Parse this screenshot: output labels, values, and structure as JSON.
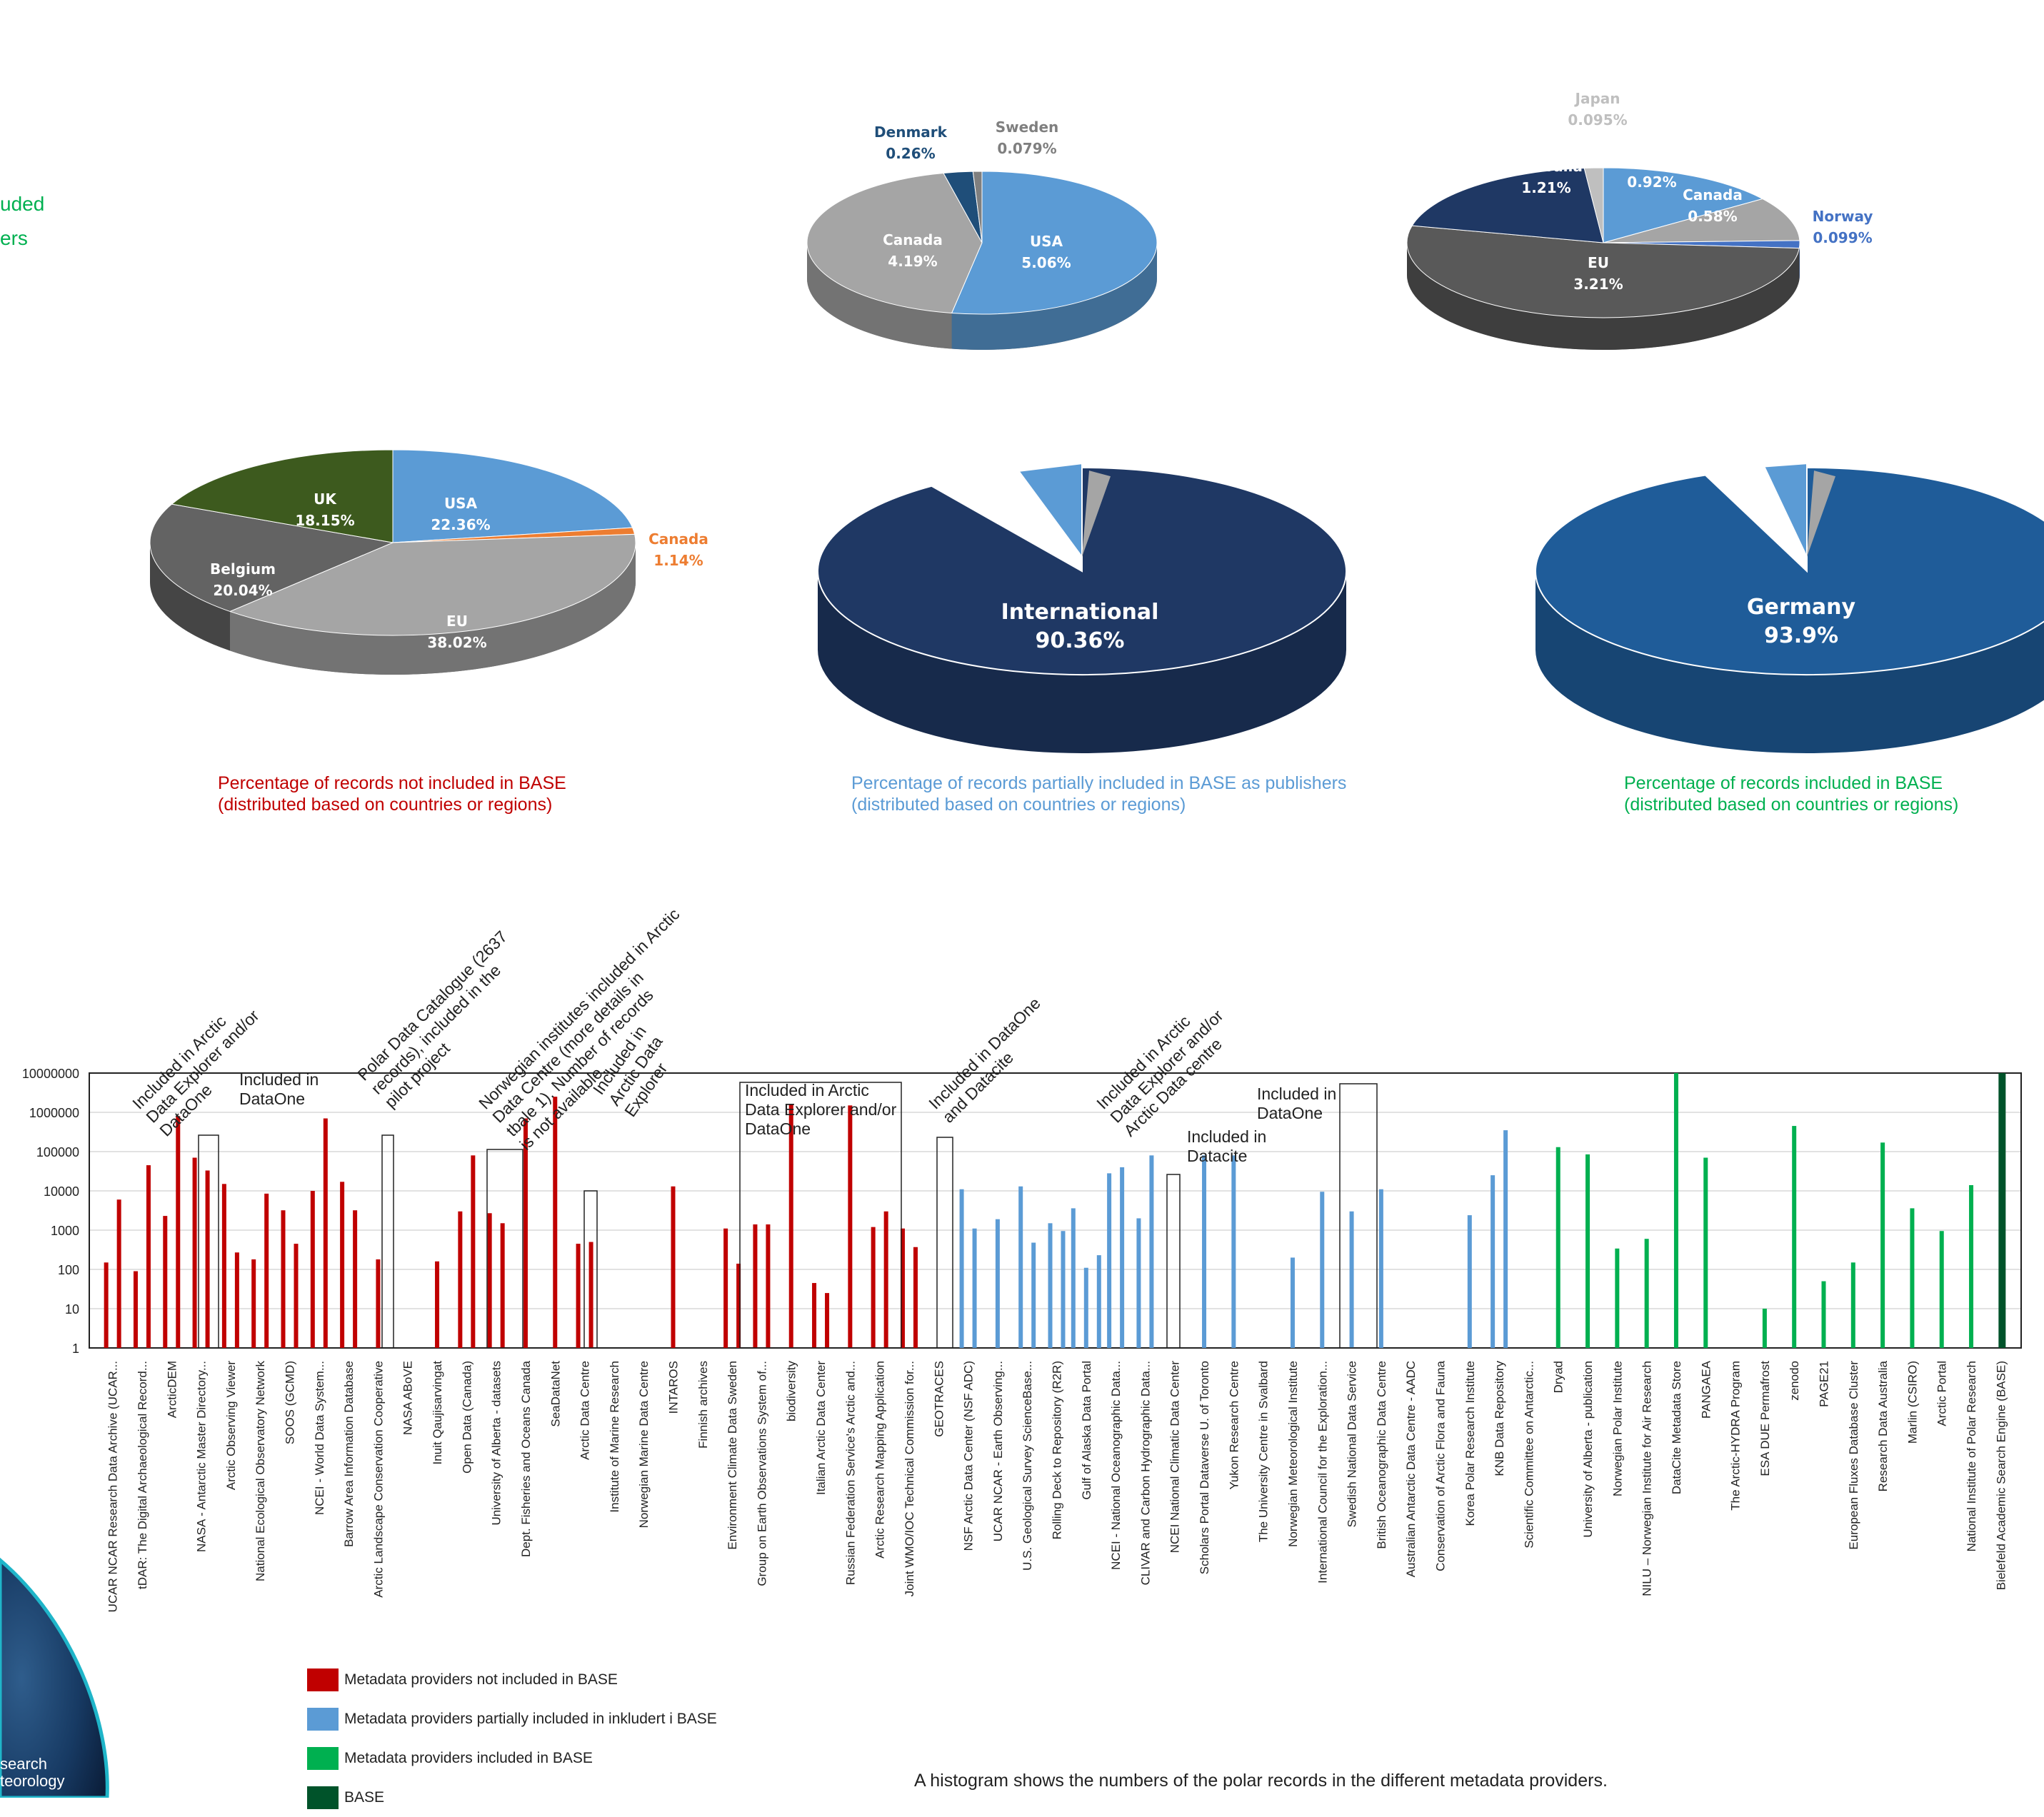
{
  "fragments": {
    "left_green_1": "uded",
    "left_green_2": "ers",
    "left_white_1": "search",
    "left_white_2": "teorology"
  },
  "captions": {
    "not_included_1": "Percentage of records not included in BASE",
    "not_included_2": "(distributed based on countries or regions)",
    "partial_1": "Percentage of records partially included in BASE as publishers",
    "partial_2": "(distributed based on countries or regions)",
    "included_1": "Percentage of records included in BASE",
    "included_2": "(distributed based on countries or regions)",
    "histogram": "A histogram shows the numbers of the polar records in the different metadata providers."
  },
  "legend": [
    {
      "label": "Metadata providers not included in BASE",
      "color": "#c00000"
    },
    {
      "label": "Metadata providers partially included in inkludert i BASE",
      "color": "#5b9bd5"
    },
    {
      "label": "Metadata providers included in BASE",
      "color": "#00b050"
    },
    {
      "label": "BASE",
      "color": "#00532a"
    }
  ],
  "chart_data": [
    {
      "type": "pie",
      "slices": [
        {
          "label": "USA",
          "value": 22.36,
          "display": "22.36%",
          "color": "#5b9bd5"
        },
        {
          "label": "Canada",
          "value": 1.14,
          "display": "1.14%",
          "color": "#ed7d31"
        },
        {
          "label": "EU",
          "value": 38.02,
          "display": "38.02%",
          "color": "#a5a5a5"
        },
        {
          "label": "Belgium",
          "value": 20.04,
          "display": "20.04%",
          "color": "#636363"
        },
        {
          "label": "UK",
          "value": 18.15,
          "display": "18.15%",
          "color": "#3d5a1e"
        }
      ]
    },
    {
      "type": "pie",
      "slices": [
        {
          "label": "USA",
          "value": 5.06,
          "display": "5.06%",
          "color": "#5b9bd5"
        },
        {
          "label": "Canada",
          "value": 4.19,
          "display": "4.19%",
          "color": "#a5a5a5"
        },
        {
          "label": "Denmark",
          "value": 0.26,
          "display": "0.26%",
          "color": "#1f4e79"
        },
        {
          "label": "Sweden",
          "value": 0.079,
          "display": "0.079%",
          "color": "#7f7f7f"
        }
      ]
    },
    {
      "type": "pie",
      "slices": [
        {
          "label": "International",
          "value": 90.36,
          "display": "90.36%",
          "color": "#1f3864"
        }
      ]
    },
    {
      "type": "pie",
      "slices": [
        {
          "label": "USA",
          "value": 0.92,
          "display": "0.92%",
          "color": "#5b9bd5"
        },
        {
          "label": "Canada",
          "value": 0.58,
          "display": "0.58%",
          "color": "#a5a5a5"
        },
        {
          "label": "Norway",
          "value": 0.099,
          "display": "0.099%",
          "color": "#4472c4"
        },
        {
          "label": "EU",
          "value": 3.21,
          "display": "3.21%",
          "color": "#595959"
        },
        {
          "label": "Australia",
          "value": 1.21,
          "display": "1.21%",
          "color": "#1f3864"
        },
        {
          "label": "Japan",
          "value": 0.095,
          "display": "0.095%",
          "color": "#bfbfbf"
        }
      ]
    },
    {
      "type": "pie",
      "slices": [
        {
          "label": "Germany",
          "value": 93.9,
          "display": "93.9%",
          "color": "#1f5c99"
        }
      ]
    },
    {
      "type": "bar",
      "y_scale": "log",
      "ylim": [
        1,
        10000000
      ],
      "yticks": [
        "1",
        "10",
        "100",
        "1000",
        "10000",
        "100000",
        "1000000",
        "10000000"
      ],
      "categories": [
        {
          "label": "UCAR NCAR Research Data Archive (UCAR...",
          "group": "red",
          "bars": [
            150,
            6000
          ]
        },
        {
          "label": "tDAR: The Digital Archaeological Record...",
          "group": "red",
          "bars": [
            90,
            45000
          ]
        },
        {
          "label": "ArcticDEM",
          "group": "red",
          "bars": [
            2300,
            800000
          ]
        },
        {
          "label": "NASA - Antarctic Master Directory...",
          "group": "red",
          "bars": [
            70000,
            33000
          ]
        },
        {
          "label": "Arctic Observing Viewer",
          "group": "red",
          "bars": [
            15000,
            270
          ]
        },
        {
          "label": "National Ecological Observatory Network",
          "group": "red",
          "bars": [
            180,
            8500
          ]
        },
        {
          "label": "SOOS (GCMD)",
          "group": "red",
          "bars": [
            3200,
            450
          ]
        },
        {
          "label": "NCEI - World Data System...",
          "group": "red",
          "bars": [
            10000,
            700000
          ]
        },
        {
          "label": "Barrow Area Information Database",
          "group": "red",
          "bars": [
            17000,
            3200
          ]
        },
        {
          "label": "Arctic Landscape Conservation Cooperative",
          "group": "red",
          "bars": [
            180
          ]
        },
        {
          "label": "NASA ABoVE",
          "group": "red",
          "bars": []
        },
        {
          "label": "Inuit Qaujisarvingat",
          "group": "red",
          "bars": [
            160
          ]
        },
        {
          "label": "Open Data (Canada)",
          "group": "red",
          "bars": [
            3000,
            80000
          ]
        },
        {
          "label": "University of Alberta - datasets",
          "group": "red",
          "bars": [
            2700,
            1500
          ]
        },
        {
          "label": "Dept. Fisheries and Oceans Canada",
          "group": "red",
          "bars": [
            700000
          ]
        },
        {
          "label": "SeaDataNet",
          "group": "red",
          "bars": [
            2500000
          ]
        },
        {
          "label": "Arctic Data Centre",
          "group": "red",
          "bars": [
            450,
            500
          ]
        },
        {
          "label": "Institute of Marine Research",
          "group": "red",
          "bars": []
        },
        {
          "label": "Norwegian Marine Data Centre",
          "group": "red",
          "bars": []
        },
        {
          "label": "INTAROS",
          "group": "red",
          "bars": [
            13000
          ]
        },
        {
          "label": "Finnish archives",
          "group": "red",
          "bars": []
        },
        {
          "label": "Environment Climate Data Sweden",
          "group": "red",
          "bars": [
            1100,
            140
          ]
        },
        {
          "label": "Group on Earth Observations System of...",
          "group": "red",
          "bars": [
            1400,
            1400
          ]
        },
        {
          "label": "biodiversity",
          "group": "red",
          "bars": [
            1600000
          ]
        },
        {
          "label": "Italian Arctic Data Center",
          "group": "red",
          "bars": [
            45,
            25
          ]
        },
        {
          "label": "Russian Federation Service's Arctic and...",
          "group": "red",
          "bars": [
            1500000
          ]
        },
        {
          "label": "Arctic Research Mapping Application",
          "group": "red",
          "bars": [
            1200,
            3000
          ]
        },
        {
          "label": "Joint WMO/IOC Technical Commission for...",
          "group": "red",
          "bars": [
            1100,
            370
          ]
        },
        {
          "label": "GEOTRACES",
          "group": "red",
          "bars": []
        },
        {
          "label": "NSF Arctic Data Center (NSF ADC)",
          "group": "blue",
          "bars": [
            11000,
            1100
          ]
        },
        {
          "label": "UCAR NCAR - Earth Observing...",
          "group": "blue",
          "bars": [
            1900
          ]
        },
        {
          "label": "U.S. Geological Survey ScienceBase...",
          "group": "blue",
          "bars": [
            13000,
            480
          ]
        },
        {
          "label": "Rolling Deck to Repository (R2R)",
          "group": "blue",
          "bars": [
            1500,
            950
          ]
        },
        {
          "label": "Gulf of Alaska Data Portal",
          "group": "blue",
          "bars": [
            3600,
            110,
            230
          ]
        },
        {
          "label": "NCEI - National Oceanographic Data...",
          "group": "blue",
          "bars": [
            28000,
            40000
          ]
        },
        {
          "label": "CLIVAR and Carbon Hydrographic Data...",
          "group": "blue",
          "bars": [
            2000,
            80000
          ]
        },
        {
          "label": "NCEI National Climatic Data Center",
          "group": "blue",
          "bars": []
        },
        {
          "label": "Scholars Portal Dataverse U. of Toronto",
          "group": "blue",
          "bars": [
            80000
          ]
        },
        {
          "label": "Yukon Research Centre",
          "group": "blue",
          "bars": [
            80000
          ]
        },
        {
          "label": "The University Centre in Svalbard",
          "group": "blue",
          "bars": []
        },
        {
          "label": "Norwegian Meteorological Institute",
          "group": "blue",
          "bars": [
            200
          ]
        },
        {
          "label": "International Council for the Exploration...",
          "group": "blue",
          "bars": [
            9500
          ]
        },
        {
          "label": "Swedish National Data Service",
          "group": "blue",
          "bars": [
            3000
          ]
        },
        {
          "label": "British Oceanographic Data Centre",
          "group": "blue",
          "bars": [
            11000
          ]
        },
        {
          "label": "Australian Antarctic Data Centre - AADC",
          "group": "blue",
          "bars": []
        },
        {
          "label": "Conservation of Arctic Flora and Fauna",
          "group": "blue",
          "bars": []
        },
        {
          "label": "Korea Polar Research Institute",
          "group": "blue",
          "bars": [
            2400
          ]
        },
        {
          "label": "KNB Data Repository",
          "group": "blue",
          "bars": [
            25000,
            350000
          ]
        },
        {
          "label": "Scientific Committee on Antarctic...",
          "group": "blue",
          "bars": []
        },
        {
          "label": "Dryad",
          "group": "green",
          "bars": [
            130000
          ]
        },
        {
          "label": "University of Alberta - publication",
          "group": "green",
          "bars": [
            85000
          ]
        },
        {
          "label": "Norwegian Polar Institute",
          "group": "green",
          "bars": [
            340
          ]
        },
        {
          "label": "NILU – Norwegian Institute for Air Research",
          "group": "green",
          "bars": [
            600
          ]
        },
        {
          "label": "DataCite Metadata Store",
          "group": "green",
          "bars": [
            10000000
          ]
        },
        {
          "label": "PANGAEA",
          "group": "green",
          "bars": [
            70000
          ]
        },
        {
          "label": "The Arctic-HYDRA Program",
          "group": "green",
          "bars": []
        },
        {
          "label": "ESA DUE Permafrost",
          "group": "green",
          "bars": [
            10
          ]
        },
        {
          "label": "zenodo",
          "group": "green",
          "bars": [
            450000
          ]
        },
        {
          "label": "PAGE21",
          "group": "green",
          "bars": [
            50
          ]
        },
        {
          "label": "European Fluxes Database Cluster",
          "group": "green",
          "bars": [
            150
          ]
        },
        {
          "label": "Research Data Australia",
          "group": "green",
          "bars": [
            170000
          ]
        },
        {
          "label": "Marlin (CSIRO)",
          "group": "green",
          "bars": [
            3600
          ]
        },
        {
          "label": "Arctic Portal",
          "group": "green",
          "bars": [
            950
          ]
        },
        {
          "label": "National Institute of Polar Research",
          "group": "green",
          "bars": [
            14000
          ]
        },
        {
          "label": "Bielefeld Academic Search Engine (BASE)",
          "group": "base",
          "bars": [
            10000000
          ]
        }
      ],
      "annotations": [
        "Included in Arctic Data Explorer and/or DataOne",
        "Included in DataOne",
        "Polar Data Catalogue (2637 records), included in the pilot project",
        "Norwegian institutes included in Arctic Data Centre (more details in tbale 1). Number of records is not available.",
        "Included in Arctic Data Explorer",
        "Included in Arctic Data Explorer and/or DataOne",
        "Included in DataOne and Datacite",
        "Included in Arctic Data Explorer and/or Arctic Data centre",
        "Included in Datacite",
        "Included in DataOne"
      ]
    }
  ]
}
